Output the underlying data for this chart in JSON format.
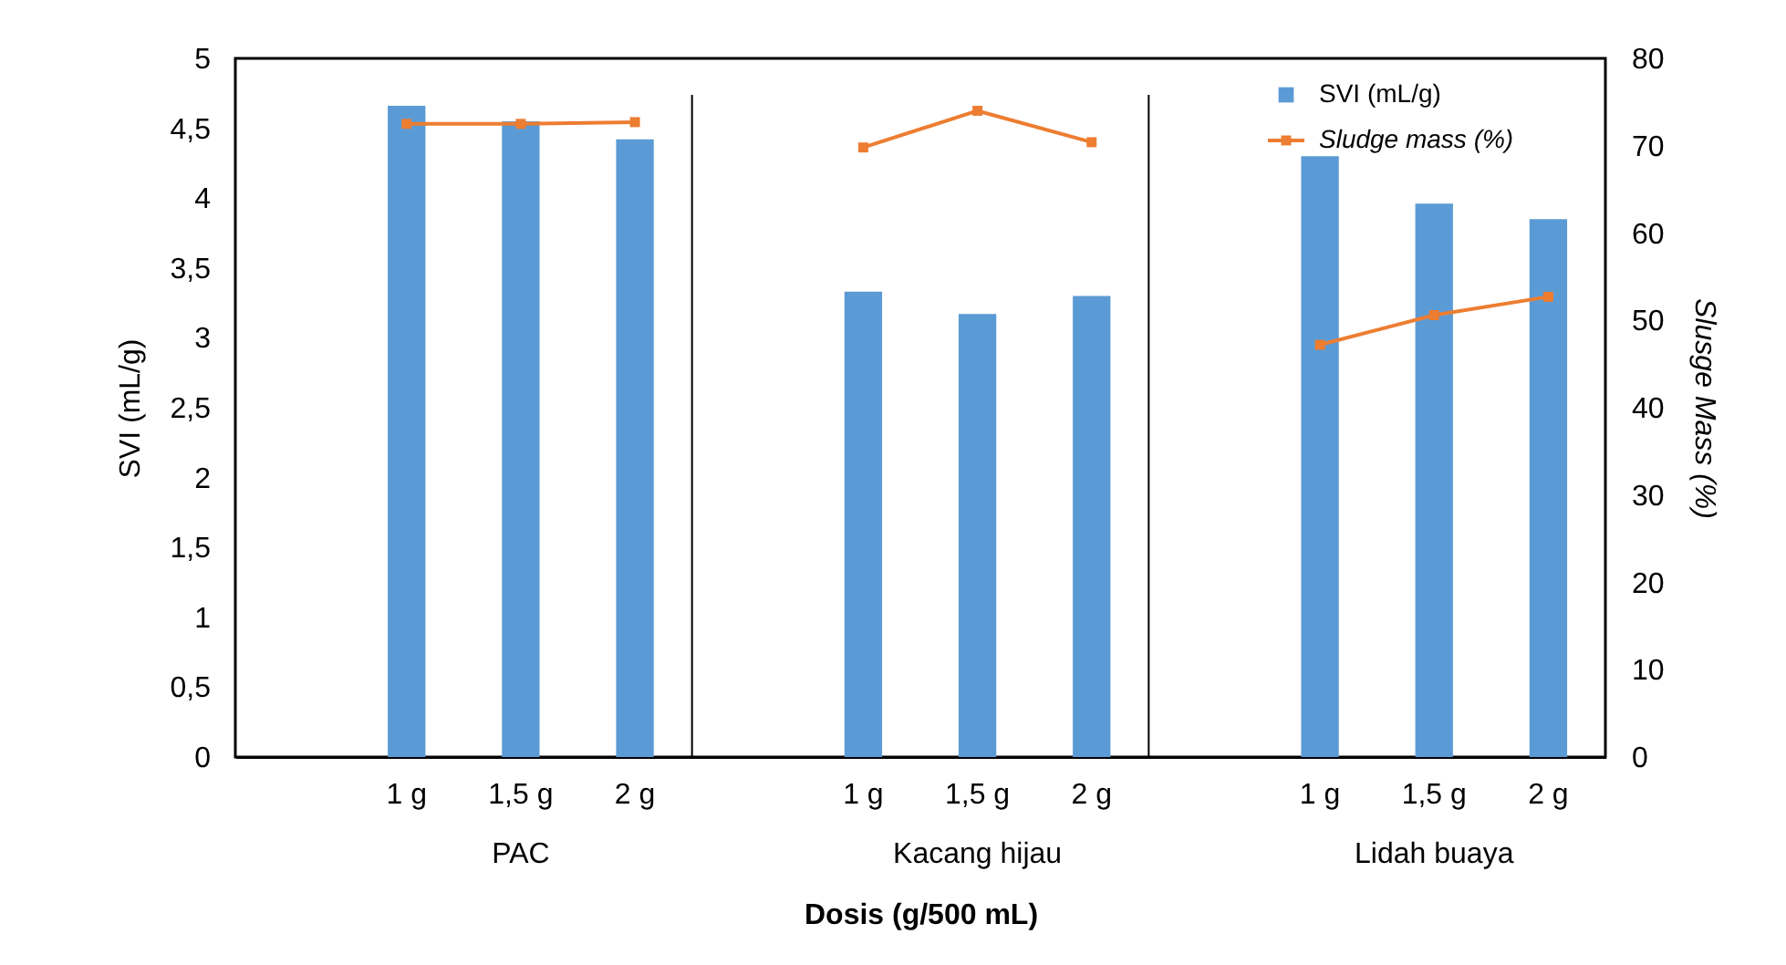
{
  "chart_data": {
    "type": "bar",
    "categories": [
      null,
      "1 g",
      "1,5 g",
      "2 g",
      null,
      "1 g",
      "1,5 g",
      "2 g",
      null,
      "1 g",
      "1,5 g",
      "2 g"
    ],
    "series": [
      {
        "name": "SVI (mL/g)",
        "color": "#5b9bd5",
        "values": [
          null,
          4.66,
          4.55,
          4.42,
          null,
          3.33,
          3.17,
          3.3,
          null,
          4.3,
          3.96,
          3.85
        ]
      },
      {
        "name": "Sludge mass (%)",
        "type": "line",
        "axis": "y2",
        "color": "#ed7d31",
        "values": [
          null,
          72.5,
          72.5,
          72.7,
          null,
          69.8,
          74.0,
          70.4,
          null,
          47.2,
          50.6,
          52.7
        ]
      }
    ],
    "xlabel": "Dosis (g/500 mL)",
    "ylabel": "SVI (mL/g)",
    "y2label": "Slusge Mass (%)",
    "annotations": [
      "PAC",
      "Kacang hijau",
      "Lidah buaya"
    ],
    "ylim": [
      0,
      5
    ],
    "yticks": [
      0,
      {
        "value": 0.5,
        "label": "0,5"
      },
      1,
      {
        "value": 1.5,
        "label": "1,5"
      },
      2,
      {
        "value": 2.5,
        "label": "2,5"
      },
      3,
      {
        "value": 3.5,
        "label": "3,5"
      },
      4,
      {
        "value": 4.5,
        "label": "4,5"
      },
      5
    ],
    "y2lim": [
      0,
      80
    ],
    "y2ticks": [
      0,
      10,
      20,
      30,
      40,
      50,
      60,
      70,
      80
    ],
    "marker": "square",
    "line_style": "solid",
    "legend": "top right",
    "grid": false
  }
}
